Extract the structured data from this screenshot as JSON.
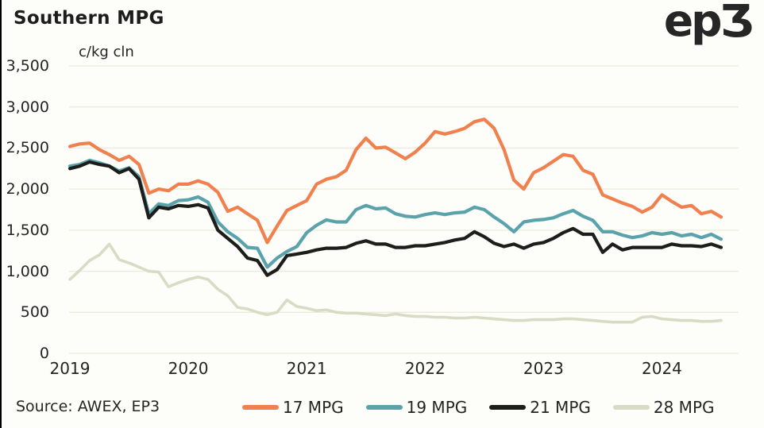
{
  "header": {
    "title": "Southern MPG",
    "logo": "ep3"
  },
  "footer": {
    "source": "Source: AWEX, EP3"
  },
  "colors": {
    "orange_17mpg": "#f0814f",
    "teal_19mpg": "#5ba3ab",
    "black_21mpg": "#1d1d1b",
    "beige_28mpg": "#d9dcc4",
    "grid": "#ecebdb",
    "background": "#fdfdfa",
    "text": "#242424"
  },
  "chart_data": {
    "type": "line",
    "title": "Southern MPG",
    "ylabel": "c/kg cln",
    "xlabel": "",
    "ylim": [
      0,
      3500
    ],
    "yticks": [
      0,
      500,
      1000,
      1500,
      2000,
      2500,
      3000,
      3500
    ],
    "grid": "horizontal-only",
    "legend_position": "bottom",
    "x_range_note": "monthly points, Jan 2019 to Jul 2024",
    "xtick_labels": [
      "2019",
      "2020",
      "2021",
      "2022",
      "2023",
      "2024"
    ],
    "series": [
      {
        "name": "17 MPG",
        "color": "#f0814f",
        "width": 4.2,
        "z": 4,
        "values": [
          2520,
          2550,
          2560,
          2480,
          2420,
          2350,
          2400,
          2300,
          1950,
          2000,
          1980,
          2060,
          2060,
          2100,
          2060,
          1960,
          1730,
          1780,
          1700,
          1620,
          1350,
          1550,
          1740,
          1800,
          1860,
          2060,
          2120,
          2150,
          2230,
          2480,
          2620,
          2500,
          2510,
          2440,
          2370,
          2450,
          2560,
          2700,
          2670,
          2700,
          2740,
          2820,
          2850,
          2740,
          2480,
          2110,
          2000,
          2200,
          2260,
          2340,
          2420,
          2400,
          2230,
          2180,
          1930,
          1880,
          1830,
          1790,
          1720,
          1780,
          1930,
          1850,
          1780,
          1800,
          1700,
          1730,
          1660
        ]
      },
      {
        "name": "19 MPG",
        "color": "#5ba3ab",
        "width": 4.2,
        "z": 2,
        "values": [
          2280,
          2300,
          2350,
          2320,
          2280,
          2220,
          2260,
          2150,
          1700,
          1820,
          1800,
          1860,
          1870,
          1905,
          1840,
          1600,
          1480,
          1400,
          1290,
          1280,
          1050,
          1160,
          1240,
          1300,
          1470,
          1560,
          1625,
          1600,
          1600,
          1750,
          1800,
          1760,
          1770,
          1700,
          1670,
          1660,
          1690,
          1710,
          1690,
          1710,
          1720,
          1780,
          1750,
          1660,
          1580,
          1480,
          1600,
          1620,
          1630,
          1650,
          1700,
          1740,
          1670,
          1620,
          1480,
          1480,
          1440,
          1410,
          1430,
          1470,
          1450,
          1470,
          1430,
          1450,
          1410,
          1450,
          1390
        ]
      },
      {
        "name": "21 MPG",
        "color": "#1d1d1b",
        "width": 4.2,
        "z": 3,
        "values": [
          2250,
          2280,
          2330,
          2300,
          2280,
          2200,
          2250,
          2120,
          1650,
          1780,
          1760,
          1800,
          1790,
          1810,
          1770,
          1500,
          1400,
          1300,
          1160,
          1130,
          950,
          1020,
          1190,
          1210,
          1230,
          1260,
          1280,
          1280,
          1290,
          1340,
          1370,
          1330,
          1330,
          1290,
          1290,
          1310,
          1310,
          1330,
          1350,
          1380,
          1400,
          1480,
          1420,
          1340,
          1300,
          1330,
          1280,
          1330,
          1350,
          1400,
          1470,
          1520,
          1450,
          1450,
          1230,
          1330,
          1260,
          1290,
          1290,
          1290,
          1290,
          1330,
          1310,
          1310,
          1300,
          1330,
          1290
        ]
      },
      {
        "name": "28 MPG",
        "color": "#d9dcc4",
        "width": 3.6,
        "z": 1,
        "values": [
          900,
          1010,
          1130,
          1200,
          1330,
          1140,
          1100,
          1050,
          1000,
          990,
          810,
          860,
          900,
          930,
          900,
          780,
          700,
          560,
          540,
          500,
          470,
          500,
          650,
          570,
          550,
          520,
          530,
          500,
          490,
          490,
          480,
          470,
          460,
          480,
          460,
          450,
          450,
          440,
          440,
          430,
          430,
          440,
          430,
          420,
          410,
          400,
          400,
          410,
          410,
          410,
          420,
          420,
          410,
          400,
          390,
          380,
          380,
          380,
          440,
          450,
          420,
          410,
          400,
          400,
          390,
          390,
          400
        ]
      }
    ]
  }
}
